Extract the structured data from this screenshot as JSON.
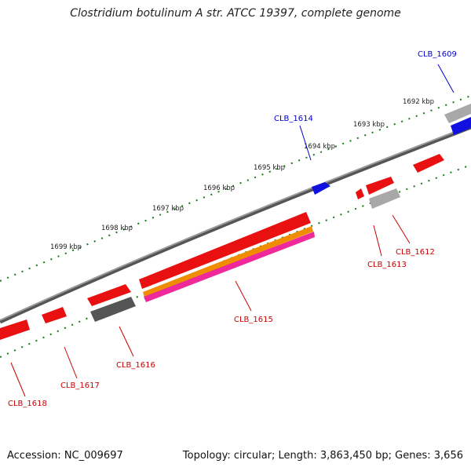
{
  "header": {
    "title": "Clostridium botulinum A str. ATCC 19397, complete genome"
  },
  "footer": {
    "accession": "Accession: NC_009697",
    "summary": "Topology: circular; Length: 3,863,450 bp; Genes: 3,656"
  },
  "scale_labels": [
    "1692 kbp",
    "1693 kbp",
    "1694 kbp",
    "1695 kbp",
    "1696 kbp",
    "1697 kbp",
    "1698 kbp",
    "1699 kbp"
  ],
  "gene_labels": [
    "CLB_1609",
    "CLB_1614",
    "CLB_1612",
    "CLB_1613",
    "CLB_1615",
    "CLB_1616",
    "CLB_1617",
    "CLB_1618"
  ],
  "colors": {
    "backbone": "#808080",
    "ticks": "#1a7a1a",
    "forward_gene": "#1010e0",
    "reverse_gene": "#e81010",
    "gray_feature": "#a8a8a8",
    "dark_feature": "#555555",
    "orange_feature": "#f08c00",
    "magenta_feature": "#ee2a9a",
    "label_blue": "#0000cc",
    "label_red": "#cc0000"
  }
}
